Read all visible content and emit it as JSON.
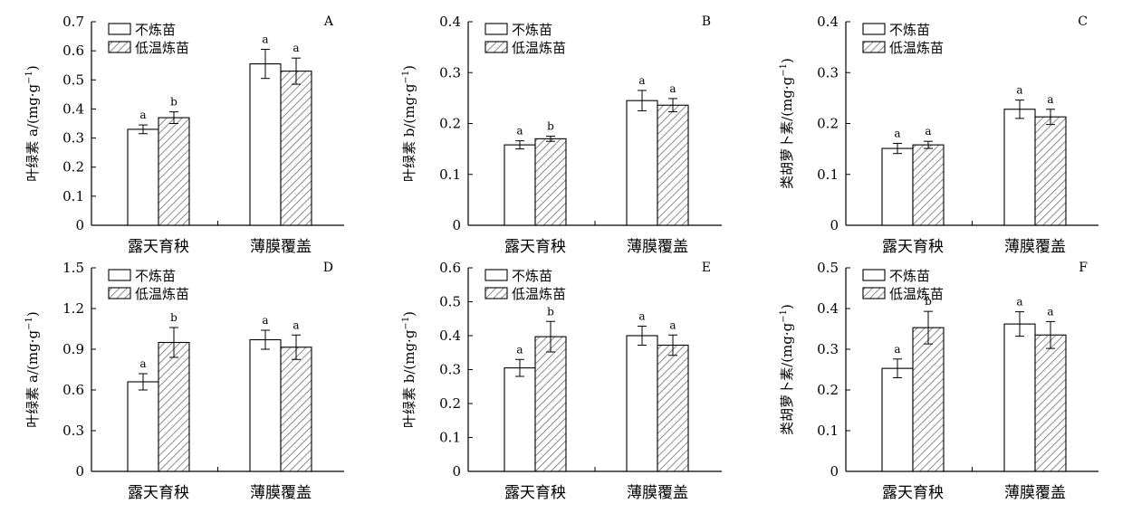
{
  "legend": [
    "不炼苗",
    "低温炼苗"
  ],
  "colors": {
    "axis": "#000000",
    "bar_fill": "#ffffff",
    "hatch": "#6e6e6e",
    "error": "#000000"
  },
  "chart_data": [
    {
      "panel": "A",
      "type": "bar",
      "categories": [
        "露天育秧",
        "薄膜覆盖"
      ],
      "series": [
        {
          "name": "不炼苗",
          "values": [
            0.33,
            0.555
          ],
          "errors": [
            0.015,
            0.05
          ],
          "sig": [
            "a",
            "a"
          ]
        },
        {
          "name": "低温炼苗",
          "values": [
            0.37,
            0.53
          ],
          "errors": [
            0.02,
            0.045
          ],
          "sig": [
            "b",
            "a"
          ]
        }
      ],
      "ylabel_prefix": "叶绿素 a/",
      "ylabel_unit": "(mg·g",
      "ylabel_sup": "−1",
      "ylabel_close": ")",
      "ylim": [
        0,
        0.7
      ],
      "yticks": [
        "0",
        "0.1",
        "0.2",
        "0.3",
        "0.4",
        "0.5",
        "0.6",
        "0.7"
      ]
    },
    {
      "panel": "B",
      "type": "bar",
      "categories": [
        "露天育秧",
        "薄膜覆盖"
      ],
      "series": [
        {
          "name": "不炼苗",
          "values": [
            0.158,
            0.245
          ],
          "errors": [
            0.008,
            0.02
          ],
          "sig": [
            "a",
            "a"
          ]
        },
        {
          "name": "低温炼苗",
          "values": [
            0.17,
            0.236
          ],
          "errors": [
            0.005,
            0.013
          ],
          "sig": [
            "b",
            "a"
          ]
        }
      ],
      "ylabel_prefix": "叶绿素 b/",
      "ylabel_unit": "(mg·g",
      "ylabel_sup": "−1",
      "ylabel_close": ")",
      "ylim": [
        0,
        0.4
      ],
      "yticks": [
        "0",
        "0.1",
        "0.2",
        "0.3",
        "0.4"
      ]
    },
    {
      "panel": "C",
      "type": "bar",
      "categories": [
        "露天育秧",
        "薄膜覆盖"
      ],
      "series": [
        {
          "name": "不炼苗",
          "values": [
            0.151,
            0.228
          ],
          "errors": [
            0.01,
            0.018
          ],
          "sig": [
            "a",
            "a"
          ]
        },
        {
          "name": "低温炼苗",
          "values": [
            0.158,
            0.213
          ],
          "errors": [
            0.007,
            0.015
          ],
          "sig": [
            "a",
            "a"
          ]
        }
      ],
      "ylabel_prefix": "类胡萝卜素/",
      "ylabel_unit": "(mg·g",
      "ylabel_sup": "−1",
      "ylabel_close": ")",
      "ylim": [
        0,
        0.4
      ],
      "yticks": [
        "0",
        "0.1",
        "0.2",
        "0.3",
        "0.4"
      ]
    },
    {
      "panel": "D",
      "type": "bar",
      "categories": [
        "露天育秧",
        "薄膜覆盖"
      ],
      "series": [
        {
          "name": "不炼苗",
          "values": [
            0.66,
            0.97
          ],
          "errors": [
            0.06,
            0.07
          ],
          "sig": [
            "a",
            "a"
          ]
        },
        {
          "name": "低温炼苗",
          "values": [
            0.95,
            0.915
          ],
          "errors": [
            0.11,
            0.09
          ],
          "sig": [
            "b",
            "a"
          ]
        }
      ],
      "ylabel_prefix": "叶绿素 a/",
      "ylabel_unit": "(mg·g",
      "ylabel_sup": "−1",
      "ylabel_close": ")",
      "ylim": [
        0,
        1.5
      ],
      "yticks": [
        "0",
        "0.3",
        "0.6",
        "0.9",
        "1.2",
        "1.5"
      ]
    },
    {
      "panel": "E",
      "type": "bar",
      "categories": [
        "露天育秧",
        "薄膜覆盖"
      ],
      "series": [
        {
          "name": "不炼苗",
          "values": [
            0.305,
            0.4
          ],
          "errors": [
            0.025,
            0.028
          ],
          "sig": [
            "a",
            "a"
          ]
        },
        {
          "name": "低温炼苗",
          "values": [
            0.397,
            0.372
          ],
          "errors": [
            0.045,
            0.03
          ],
          "sig": [
            "b",
            "a"
          ]
        }
      ],
      "ylabel_prefix": "叶绿素 b/",
      "ylabel_unit": "(mg·g",
      "ylabel_sup": "−1",
      "ylabel_close": ")",
      "ylim": [
        0,
        0.6
      ],
      "yticks": [
        "0",
        "0.1",
        "0.2",
        "0.3",
        "0.4",
        "0.5",
        "0.6"
      ]
    },
    {
      "panel": "F",
      "type": "bar",
      "categories": [
        "露天育秧",
        "薄膜覆盖"
      ],
      "series": [
        {
          "name": "不炼苗",
          "values": [
            0.253,
            0.362
          ],
          "errors": [
            0.023,
            0.03
          ],
          "sig": [
            "a",
            "a"
          ]
        },
        {
          "name": "低温炼苗",
          "values": [
            0.353,
            0.335
          ],
          "errors": [
            0.04,
            0.033
          ],
          "sig": [
            "b",
            "a"
          ]
        }
      ],
      "ylabel_prefix": "类胡萝卜素/",
      "ylabel_unit": "(mg·g",
      "ylabel_sup": "−1",
      "ylabel_close": ")",
      "ylim": [
        0,
        0.5
      ],
      "yticks": [
        "0",
        "0.1",
        "0.2",
        "0.3",
        "0.4",
        "0.5"
      ]
    }
  ]
}
